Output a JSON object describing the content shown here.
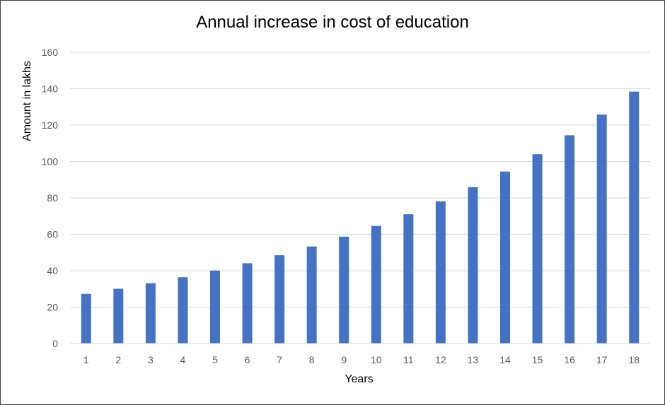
{
  "chart_data": {
    "type": "bar",
    "title": "Annual increase in cost of education",
    "xlabel": "Years",
    "ylabel": "Amount in lakhs",
    "categories": [
      "1",
      "2",
      "3",
      "4",
      "5",
      "6",
      "7",
      "8",
      "9",
      "10",
      "11",
      "12",
      "13",
      "14",
      "15",
      "16",
      "17",
      "18"
    ],
    "values": [
      27.3,
      30.1,
      33.1,
      36.4,
      40.1,
      44.1,
      48.5,
      53.3,
      58.7,
      64.6,
      71.0,
      78.1,
      85.9,
      94.5,
      104.0,
      114.4,
      125.8,
      138.4
    ],
    "ylim": [
      0,
      160
    ],
    "yticks": [
      0,
      20,
      40,
      60,
      80,
      100,
      120,
      140,
      160
    ],
    "grid": true,
    "legend": "none",
    "bar_color": "#4472c4",
    "grid_color": "#d9d9d9"
  }
}
